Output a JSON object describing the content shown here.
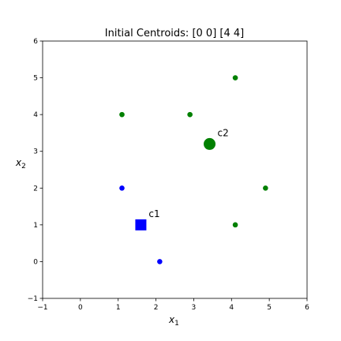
{
  "chart_data": {
    "type": "scatter",
    "title": "Initial Centroids: [0 0] [4 4]",
    "x_label": {
      "text": "x",
      "subscript": "1"
    },
    "y_label": {
      "text": "x",
      "subscript": "2"
    },
    "xlim": [
      -1,
      6
    ],
    "ylim": [
      -1,
      6
    ],
    "xticks": [
      {
        "value": -1,
        "label": "−1"
      },
      0,
      1,
      2,
      3,
      4,
      5,
      6
    ],
    "yticks": [
      {
        "value": -1,
        "label": "−1"
      },
      0,
      1,
      2,
      3,
      4,
      5,
      6
    ],
    "grid": false,
    "series": [
      {
        "color": "blue",
        "x": [
          1.1,
          2.1
        ],
        "y": [
          2,
          0
        ]
      },
      {
        "color": "green",
        "x": [
          1.1,
          2.9,
          4.1,
          4.9,
          4.1
        ],
        "y": [
          4,
          4,
          5,
          2,
          1
        ]
      }
    ],
    "centroids": [
      {
        "label": "c1",
        "x": 1.6,
        "y": 1.0,
        "color": "blue",
        "marker": "square"
      },
      {
        "label": "c2",
        "x": 3.42,
        "y": 3.2,
        "color": "green",
        "marker": "circle"
      }
    ]
  }
}
